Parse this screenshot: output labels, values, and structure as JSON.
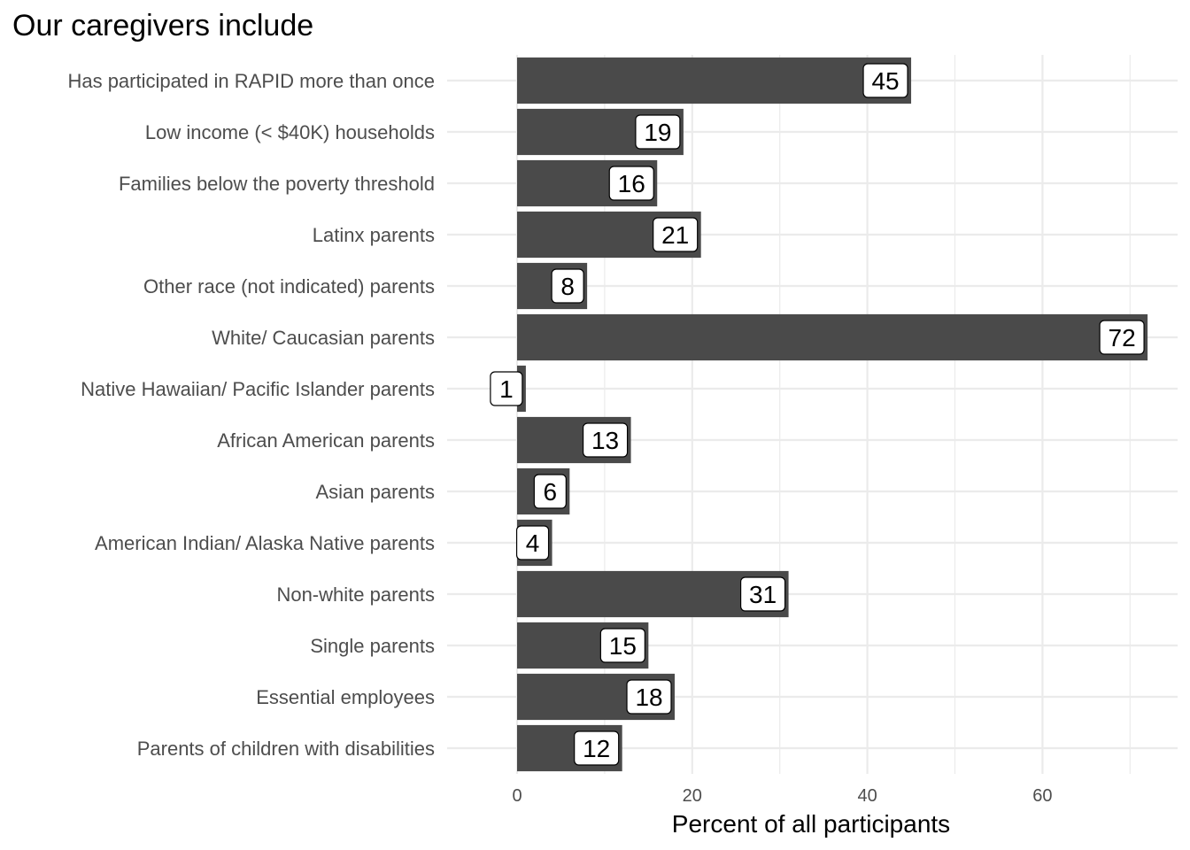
{
  "chart_data": {
    "type": "bar",
    "orientation": "horizontal",
    "title": "Our caregivers include",
    "xlabel": "Percent of all participants",
    "ylabel": "",
    "xlim": [
      -8,
      75
    ],
    "xticks": [
      0,
      20,
      40,
      60
    ],
    "grid": true,
    "bar_color": "#4a4a4a",
    "categories": [
      "Has participated in RAPID more than once",
      "Low income (< $40K) households",
      "Families below the poverty threshold",
      "Latinx parents",
      "Other race (not indicated) parents",
      "White/ Caucasian parents",
      "Native Hawaiian/ Pacific Islander parents",
      "African American parents",
      "Asian parents",
      "American Indian/ Alaska Native parents",
      "Non-white parents",
      "Single parents",
      "Essential employees",
      "Parents of children with disabilities"
    ],
    "values": [
      45,
      19,
      16,
      21,
      8,
      72,
      1,
      13,
      6,
      4,
      31,
      15,
      18,
      12
    ],
    "labels": [
      "45",
      "19",
      "16",
      "21",
      "8",
      "72",
      "1",
      "13",
      "6",
      "4",
      "31",
      "15",
      "18",
      "12"
    ]
  }
}
